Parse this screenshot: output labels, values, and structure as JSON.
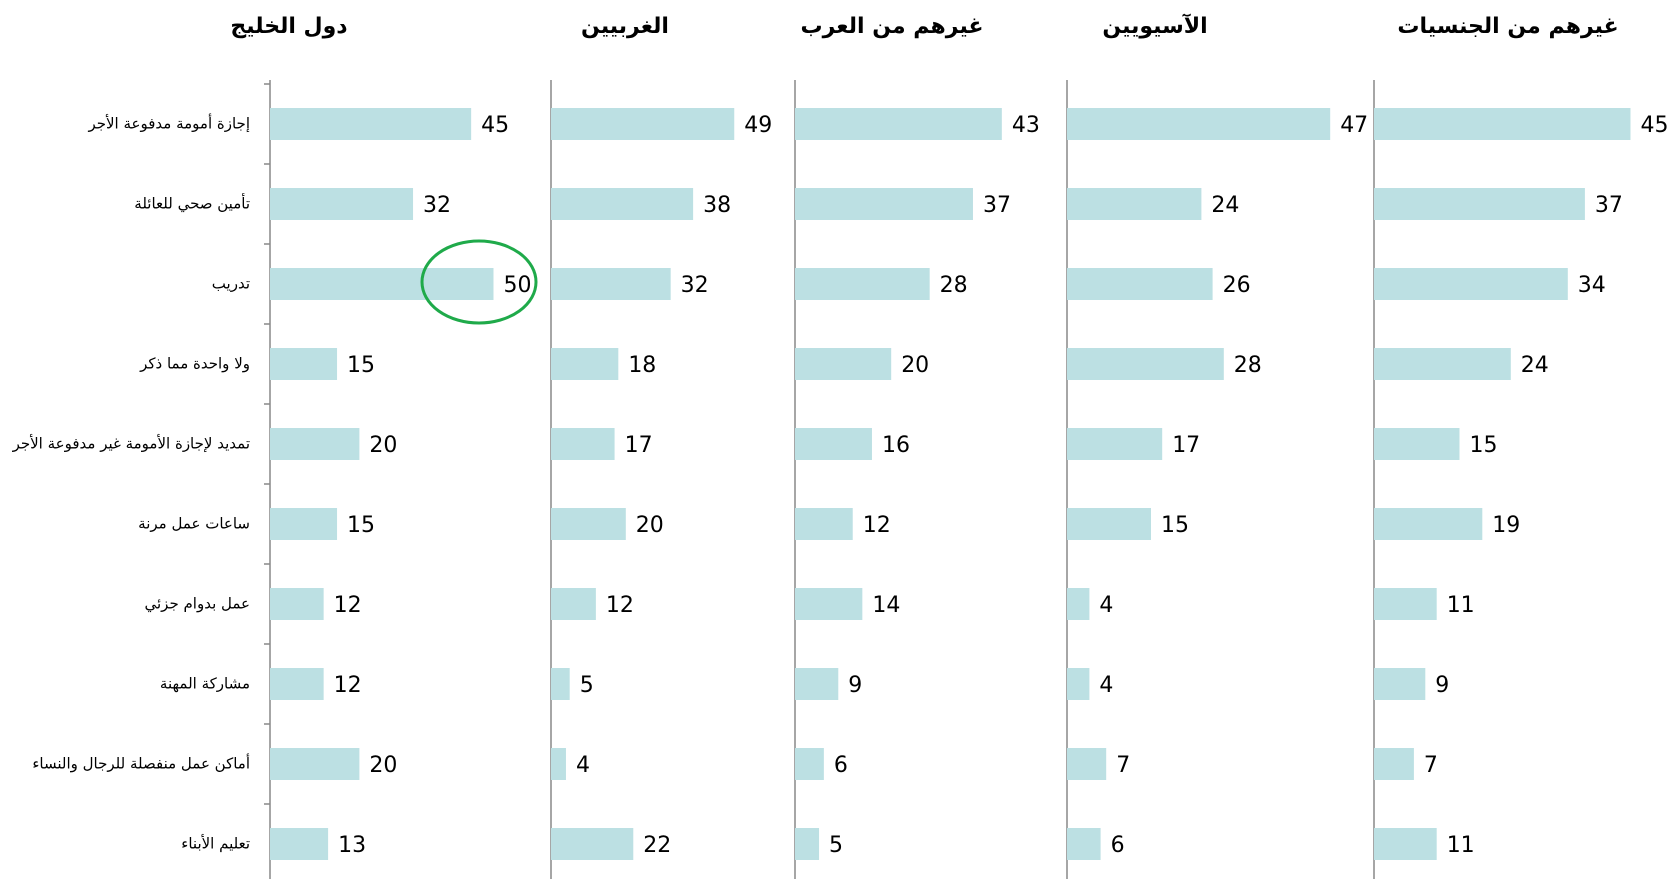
{
  "chart_data": {
    "type": "bar",
    "color": "#bce0e3",
    "categories": [
      "إجازة أمومة مدفوعة الأجر",
      "تأمين صحي للعائلة",
      "تدريب",
      "ولا واحدة مما ذكر",
      "تمديد لإجازة الأمومة غير مدفوعة الأجر",
      "ساعات عمل مرنة",
      "عمل بدوام جزئي",
      "مشاركة المهنة",
      "أماكن عمل منفصلة للرجال والنساء",
      "تعليم الأبناء"
    ],
    "series": [
      {
        "name": "دول الخليج",
        "values": [
          45,
          32,
          50,
          15,
          20,
          15,
          12,
          12,
          20,
          13
        ]
      },
      {
        "name": "الغربيين",
        "values": [
          49,
          38,
          32,
          18,
          17,
          20,
          12,
          5,
          4,
          22
        ]
      },
      {
        "name": "غيرهم من العرب",
        "values": [
          43,
          37,
          28,
          20,
          16,
          12,
          14,
          9,
          6,
          5
        ]
      },
      {
        "name": "الآسيويين",
        "values": [
          47,
          24,
          26,
          28,
          17,
          15,
          4,
          4,
          7,
          6
        ]
      },
      {
        "name": "غيرهم من الجنسيات",
        "values": [
          45,
          37,
          34,
          24,
          15,
          19,
          11,
          9,
          7,
          11
        ]
      }
    ]
  }
}
